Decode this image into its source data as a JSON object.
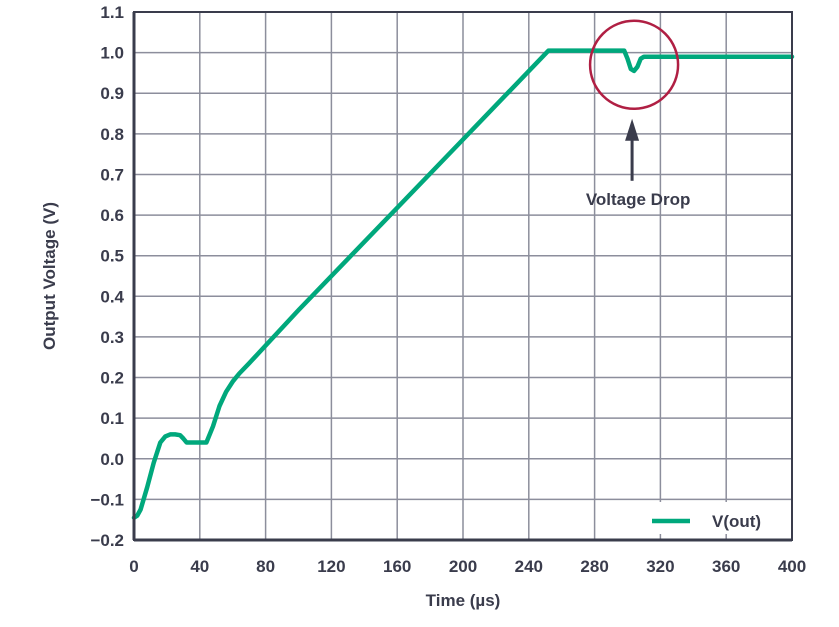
{
  "chart_data": {
    "type": "line",
    "title": "",
    "xlabel": "Time (µs)",
    "ylabel": "Output Voltage (V)",
    "xlim": [
      0,
      400
    ],
    "ylim": [
      -0.2,
      1.1
    ],
    "xticks": [
      0,
      40,
      80,
      120,
      160,
      200,
      240,
      280,
      320,
      360,
      400
    ],
    "yticks": [
      -0.2,
      -0.1,
      0.0,
      0.1,
      0.2,
      0.3,
      0.4,
      0.5,
      0.6,
      0.7,
      0.8,
      0.9,
      1.0,
      1.1
    ],
    "ytick_labels": [
      "−0.2",
      "−0.1",
      "0.0",
      "0.1",
      "0.2",
      "0.3",
      "0.4",
      "0.5",
      "0.6",
      "0.7",
      "0.8",
      "0.9",
      "1.0",
      "1.1"
    ],
    "grid": true,
    "legend_position": "bottom-right",
    "series": [
      {
        "name": "V(out)",
        "color": "#00a87c",
        "x": [
          0,
          2,
          4,
          8,
          12,
          16,
          19,
          22,
          25,
          28,
          30,
          32,
          34,
          44,
          48,
          52,
          56,
          60,
          64,
          70,
          100,
          150,
          200,
          252,
          298,
          300,
          302,
          304,
          306,
          308,
          310,
          314,
          400
        ],
        "y": [
          -0.145,
          -0.14,
          -0.125,
          -0.07,
          -0.01,
          0.04,
          0.055,
          0.06,
          0.06,
          0.058,
          0.05,
          0.04,
          0.04,
          0.04,
          0.08,
          0.13,
          0.165,
          0.19,
          0.21,
          0.235,
          0.366,
          0.576,
          0.786,
          1.005,
          1.005,
          0.985,
          0.96,
          0.955,
          0.965,
          0.985,
          0.99,
          0.99,
          0.99
        ]
      }
    ],
    "annotations": [
      {
        "text": "Voltage Drop",
        "x": 304,
        "y": 0.97,
        "circle_color": "#b01f43",
        "arrow_color": "#3a3c4c"
      }
    ]
  }
}
